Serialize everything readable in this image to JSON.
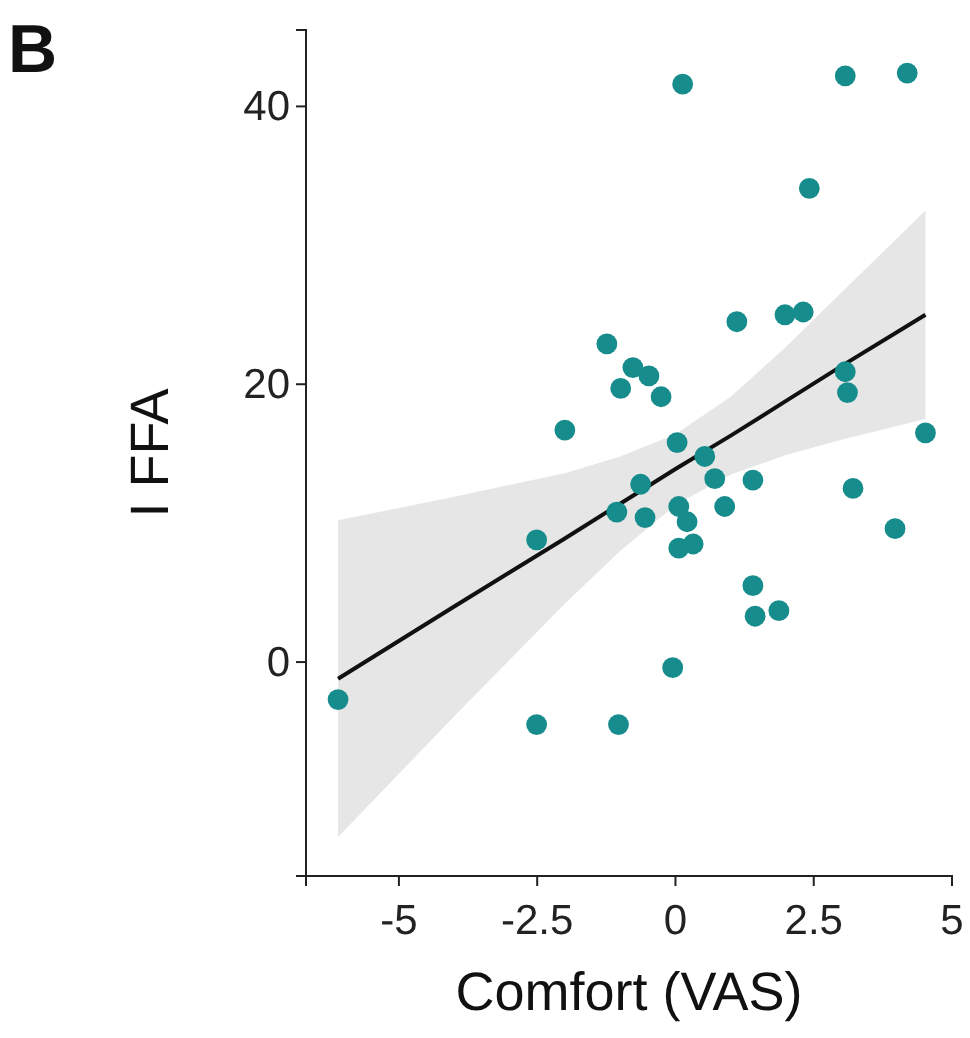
{
  "chart_data": {
    "type": "scatter",
    "title": "B",
    "xlabel": "Comfort (VAS)",
    "ylabel": "I FFA",
    "xlim": [
      -6.68,
      5
    ],
    "ylim": [
      -15.4,
      45.5
    ],
    "xticks": [
      -5,
      -2.5,
      0,
      2.5,
      5
    ],
    "yticks": [
      0,
      20,
      40
    ],
    "grid": false,
    "marker": "circle",
    "series": [
      {
        "color": "#168c8c",
        "x": [
          0.13,
          3.07,
          4.19,
          2.42,
          1.11,
          1.98,
          2.31,
          3.07,
          3.11,
          4.52,
          -1.24,
          -0.77,
          -0.99,
          -0.48,
          -0.26,
          -2.0,
          0.03,
          0.53,
          0.71,
          -0.63,
          -1.06,
          -0.55,
          0.06,
          0.21,
          0.89,
          1.4,
          0.06,
          0.32,
          1.4,
          1.44,
          1.87,
          -0.05,
          3.21,
          3.97,
          -2.51,
          -6.1,
          -2.51,
          -1.03
        ],
        "values": [
          41.6,
          42.2,
          42.4,
          34.1,
          24.5,
          25.0,
          25.2,
          20.9,
          19.4,
          16.5,
          22.9,
          21.2,
          19.7,
          20.6,
          19.1,
          16.7,
          15.8,
          14.8,
          13.2,
          12.8,
          10.8,
          10.4,
          11.2,
          10.1,
          11.2,
          13.1,
          8.2,
          8.5,
          5.5,
          3.3,
          3.7,
          -0.4,
          12.5,
          9.6,
          8.8,
          -2.7,
          -4.5,
          -4.5
        ]
      },
      {
        "type": "line",
        "color": "#111111",
        "line_style": "solid",
        "marker": "none",
        "x": [
          -6.1,
          -4,
          -2,
          -1,
          0,
          1,
          2,
          3,
          4.52
        ],
        "values": [
          -1.2,
          4.0,
          8.9,
          11.4,
          13.9,
          16.3,
          18.8,
          21.3,
          25.0
        ],
        "lower": [
          -12.6,
          -3.9,
          4.2,
          8.0,
          11.3,
          13.5,
          14.9,
          16.0,
          17.5
        ],
        "upper": [
          10.2,
          11.9,
          13.6,
          14.8,
          16.4,
          19.1,
          22.7,
          26.6,
          32.5
        ]
      }
    ]
  }
}
